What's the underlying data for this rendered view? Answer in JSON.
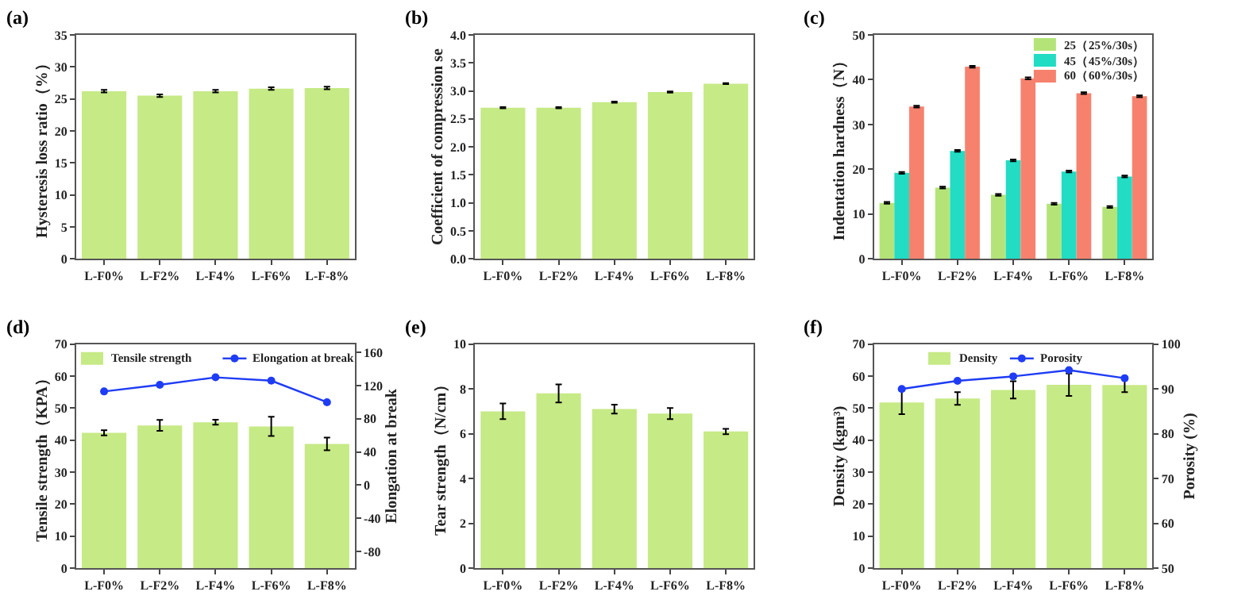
{
  "chart_data": [
    {
      "type": "bar",
      "title": "(a)",
      "ylabel": "Hysteresis loss ratio（%）",
      "categories": [
        "L-F0%",
        "L-F2%",
        "L-F4%",
        "L-F6%",
        "L-F-8%"
      ],
      "ylim": [
        0,
        35
      ],
      "yticks": [
        0,
        5,
        10,
        15,
        20,
        25,
        30,
        35
      ],
      "grid": false,
      "legend": false,
      "series": [
        {
          "color": "#c6ea86",
          "values": [
            26.2,
            25.5,
            26.2,
            26.6,
            26.7
          ],
          "errors": [
            0.2,
            0.2,
            0.2,
            0.2,
            0.2
          ]
        }
      ]
    },
    {
      "type": "bar",
      "title": "(b)",
      "ylabel": "Coefficient of compression se",
      "categories": [
        "L-F0%",
        "L-F2%",
        "L-F4%",
        "L-F6%",
        "L-F8%"
      ],
      "ylim": [
        0,
        4
      ],
      "yticks": [
        {
          "value": 0,
          "label": "0.0"
        },
        0.5,
        {
          "value": 1,
          "label": "1.0"
        },
        1.5,
        {
          "value": 2,
          "label": "2.0"
        },
        2.5,
        {
          "value": 3,
          "label": "3.0"
        },
        3.5,
        {
          "value": 4,
          "label": "4.0"
        }
      ],
      "grid": false,
      "legend": false,
      "series": [
        {
          "color": "#c6ea86",
          "values": [
            2.7,
            2.7,
            2.8,
            2.98,
            3.13
          ],
          "errors": [
            0.01,
            0.01,
            0.01,
            0.01,
            0.01
          ]
        }
      ]
    },
    {
      "type": "bar",
      "title": "(c)",
      "ylabel": "Indentation hardness（N）",
      "categories": [
        "L-F0%",
        "L-F2%",
        "L-F4%",
        "L-F6%",
        "L-F8%"
      ],
      "ylim": [
        0,
        50
      ],
      "yticks": [
        0,
        10,
        20,
        30,
        40,
        50
      ],
      "grid": false,
      "legend": "top right",
      "series": [
        {
          "name": "25（25%/30s）",
          "color": "#b4e478",
          "values": [
            12.5,
            15.9,
            14.3,
            12.3,
            11.6
          ],
          "errors": [
            0.2,
            0.2,
            0.2,
            0.2,
            0.2
          ]
        },
        {
          "name": "45（45%/30s）",
          "color": "#22dcc4",
          "values": [
            19.2,
            24.1,
            22.0,
            19.5,
            18.4
          ],
          "errors": [
            0.2,
            0.2,
            0.2,
            0.2,
            0.2
          ]
        },
        {
          "name": "60（60%/30s）",
          "color": "#f6826e",
          "values": [
            34.0,
            42.9,
            40.3,
            37.0,
            36.3
          ],
          "errors": [
            0.2,
            0.2,
            0.2,
            0.2,
            0.2
          ]
        }
      ]
    },
    {
      "type": "bar",
      "title": "(d)",
      "ylabel": "Tensile strength（KPA）",
      "y2label": "Elongation at break",
      "categories": [
        "L-F0%",
        "L-F2%",
        "L-F4%",
        "L-F6%",
        "L-F8%"
      ],
      "ylim": [
        0,
        70
      ],
      "yticks": [
        0,
        10,
        20,
        30,
        40,
        50,
        60,
        70
      ],
      "y2lim": [
        -100,
        170
      ],
      "y2ticks": [
        -80,
        -40,
        0,
        40,
        80,
        120,
        160
      ],
      "grid": false,
      "legend": "top",
      "series": [
        {
          "name": "Tensile strength",
          "color": "#c6ea86",
          "values": [
            42.3,
            44.6,
            45.6,
            44.3,
            38.8
          ],
          "errors": [
            0.8,
            1.7,
            0.8,
            3.0,
            2.0
          ]
        },
        {
          "type": "line",
          "name": "Elongation at break",
          "axis": "y2",
          "color": "#1f3cf5",
          "marker": "circle",
          "line_style": "solid",
          "values": [
            113,
            121,
            130,
            126,
            100
          ]
        }
      ]
    },
    {
      "type": "bar",
      "title": "(e)",
      "ylabel": "Tear strength（N/cm）",
      "categories": [
        "L-F0%",
        "L-F2%",
        "L-F4%",
        "L-F6%",
        "L-F8%"
      ],
      "ylim": [
        0,
        10
      ],
      "yticks": [
        0,
        2,
        4,
        6,
        8,
        10
      ],
      "grid": false,
      "legend": false,
      "series": [
        {
          "color": "#c6ea86",
          "values": [
            7.0,
            7.8,
            7.1,
            6.9,
            6.1
          ],
          "errors": [
            0.35,
            0.4,
            0.2,
            0.25,
            0.12
          ]
        }
      ]
    },
    {
      "type": "bar",
      "title": "(f)",
      "ylabel": "Density (kgm³)",
      "y2label": "Porosity (%)",
      "categories": [
        "L-F0%",
        "L-F2%",
        "L-F4%",
        "L-F6%",
        "L-F8%"
      ],
      "ylim": [
        0,
        70
      ],
      "yticks": [
        0,
        10,
        20,
        30,
        40,
        50,
        60,
        70
      ],
      "y2lim": [
        50,
        100
      ],
      "y2ticks": [
        50,
        60,
        70,
        80,
        90,
        100
      ],
      "grid": false,
      "legend": "top",
      "series": [
        {
          "name": "Density",
          "color": "#c6ea86",
          "values": [
            51.8,
            53.0,
            55.7,
            57.3,
            57.2
          ],
          "errors": [
            3.7,
            2.0,
            2.7,
            3.5,
            2.2
          ]
        },
        {
          "type": "line",
          "name": "Porosity",
          "axis": "y2",
          "color": "#1f3cf5",
          "marker": "circle",
          "line_style": "solid",
          "values": [
            90.0,
            91.8,
            92.8,
            94.2,
            92.4
          ]
        }
      ]
    }
  ]
}
